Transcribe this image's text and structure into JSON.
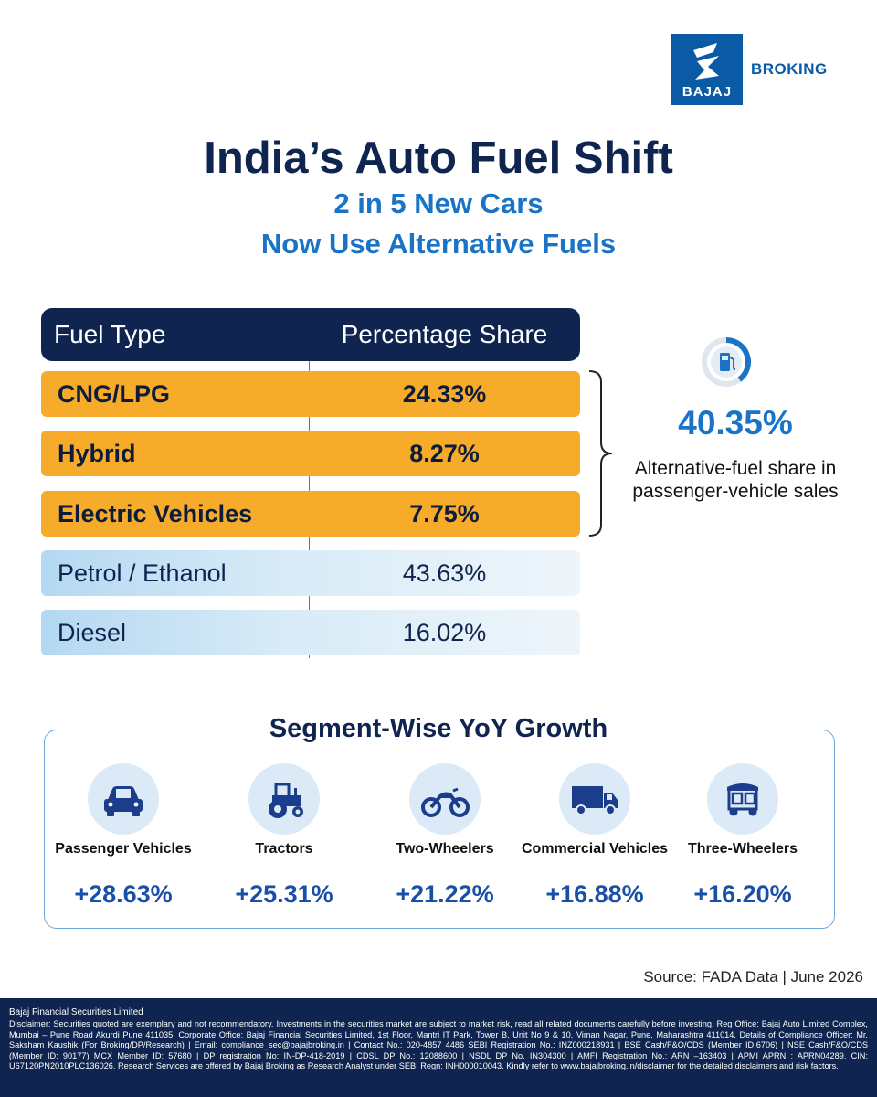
{
  "brand": {
    "logo_word": "BAJAJ",
    "name": "BROKING"
  },
  "header": {
    "title": "India’s Auto Fuel Shift",
    "subtitle_line1": "2 in 5 New Cars",
    "subtitle_line2": "Now Use Alternative Fuels"
  },
  "table": {
    "col_fuel": "Fuel Type",
    "col_share": "Percentage Share",
    "rows": [
      {
        "fuel": "CNG/LPG",
        "share": "24.33%"
      },
      {
        "fuel": "Hybrid",
        "share": "8.27%"
      },
      {
        "fuel": "Electric Vehicles",
        "share": "7.75%"
      },
      {
        "fuel": "Petrol / Ethanol",
        "share": "43.63%"
      },
      {
        "fuel": "Diesel",
        "share": "16.02%"
      }
    ]
  },
  "alt_fuel": {
    "value": "40.35%",
    "caption": "Alternative-fuel share in passenger-vehicle sales",
    "icon": "fuel-pump-gauge-icon"
  },
  "segments": {
    "title": "Segment-Wise YoY Growth",
    "items": [
      {
        "label": "Passenger Vehicles",
        "growth": "+28.63%",
        "icon": "car-icon"
      },
      {
        "label": "Tractors",
        "growth": "+25.31%",
        "icon": "tractor-icon"
      },
      {
        "label": "Two-Wheelers",
        "growth": "+21.22%",
        "icon": "motorcycle-icon"
      },
      {
        "label": "Commercial Vehicles",
        "growth": "+16.88%",
        "icon": "truck-icon"
      },
      {
        "label": "Three-Wheelers",
        "growth": "+16.20%",
        "icon": "auto-rickshaw-icon"
      }
    ]
  },
  "source": "Source: FADA Data | June 2026",
  "footer": {
    "heading": "Bajaj Financial Securities Limited",
    "text": "Disclaimer: Securities quoted are exemplary and not recommendatory. Investments in the securities market are subject to market risk, read all related documents carefully before investing. Reg Office: Bajaj Auto Limited Complex, Mumbai – Pune Road Akurdi Pune 411035. Corporate Office: Bajaj Financial Securities Limited, 1st Floor, Mantri IT Park, Tower B, Unit No 9 & 10, Viman Nagar, Pune, Maharashtra 411014. Details of Compliance Officer: Mr. Saksham Kaushik (For Broking/DP/Research) | Email: compliance_sec@bajajbroking.in | Contact No.: 020-4857 4486 SEBI Registration No.: INZ000218931 | BSE Cash/F&O/CDS (Member ID:6706) | NSE Cash/F&O/CDS (Member ID: 90177) MCX Member ID: 57680 | DP registration No: IN-DP-418-2019 | CDSL DP No.: 12088600 | NSDL DP No. IN304300 | AMFI Registration No.: ARN –163403 | APMI APRN : APRN04289. CIN: U67120PN2010PLC136026. Research Services are offered by Bajaj Broking as Research Analyst under SEBI Regn: INH000010043. Kindly refer to www.bajajbroking.in/disclaimer for the detailed disclaimers and risk factors."
  },
  "chart_data": {
    "type": "table",
    "title": "India’s Auto Fuel Shift",
    "columns": [
      "Fuel Type",
      "Percentage Share"
    ],
    "categories": [
      "CNG/LPG",
      "Hybrid",
      "Electric Vehicles",
      "Petrol / Ethanol",
      "Diesel"
    ],
    "values": [
      24.33,
      8.27,
      7.75,
      43.63,
      16.02
    ],
    "highlighted": [
      "CNG/LPG",
      "Hybrid",
      "Electric Vehicles"
    ],
    "highlight_total": 40.35,
    "segments": {
      "title": "Segment-Wise YoY Growth",
      "categories": [
        "Passenger Vehicles",
        "Tractors",
        "Two-Wheelers",
        "Commercial Vehicles",
        "Three-Wheelers"
      ],
      "values": [
        28.63,
        25.31,
        21.22,
        16.88,
        16.2
      ]
    }
  }
}
